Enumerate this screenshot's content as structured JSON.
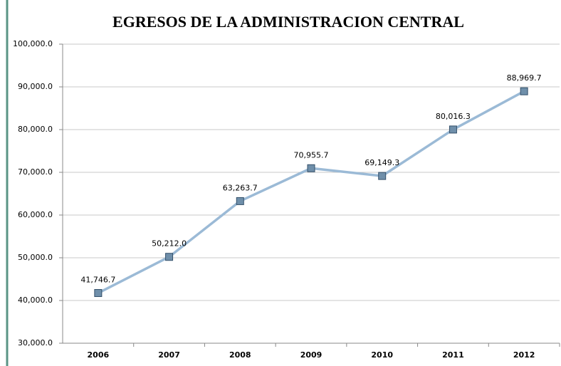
{
  "chart_data": {
    "type": "line",
    "title": "EGRESOS DE LA ADMINISTRACION CENTRAL",
    "categories": [
      "2006",
      "2007",
      "2008",
      "2009",
      "2010",
      "2011",
      "2012"
    ],
    "series": [
      {
        "name": "Egresos",
        "color": "#9bbad6",
        "values": [
          41746.7,
          50212.0,
          63263.7,
          70955.7,
          69149.3,
          80016.3,
          88969.7
        ],
        "value_labels": [
          "41,746.7",
          "50,212.0",
          "63,263.7",
          "70,955.7",
          "69,149.3",
          "80,016.3",
          "88,969.7"
        ]
      }
    ],
    "ylim": [
      30000,
      100000
    ],
    "yticks": [
      {
        "value": 30000,
        "label": "30,000.0"
      },
      {
        "value": 40000,
        "label": "40,000.0"
      },
      {
        "value": 50000,
        "label": "50,000.0"
      },
      {
        "value": 60000,
        "label": "60,000.0"
      },
      {
        "value": 70000,
        "label": "70,000.0"
      },
      {
        "value": 80000,
        "label": "80,000.0"
      },
      {
        "value": 90000,
        "label": "90,000.0"
      },
      {
        "value": 100000,
        "label": "100,000.0"
      }
    ],
    "grid": true
  }
}
